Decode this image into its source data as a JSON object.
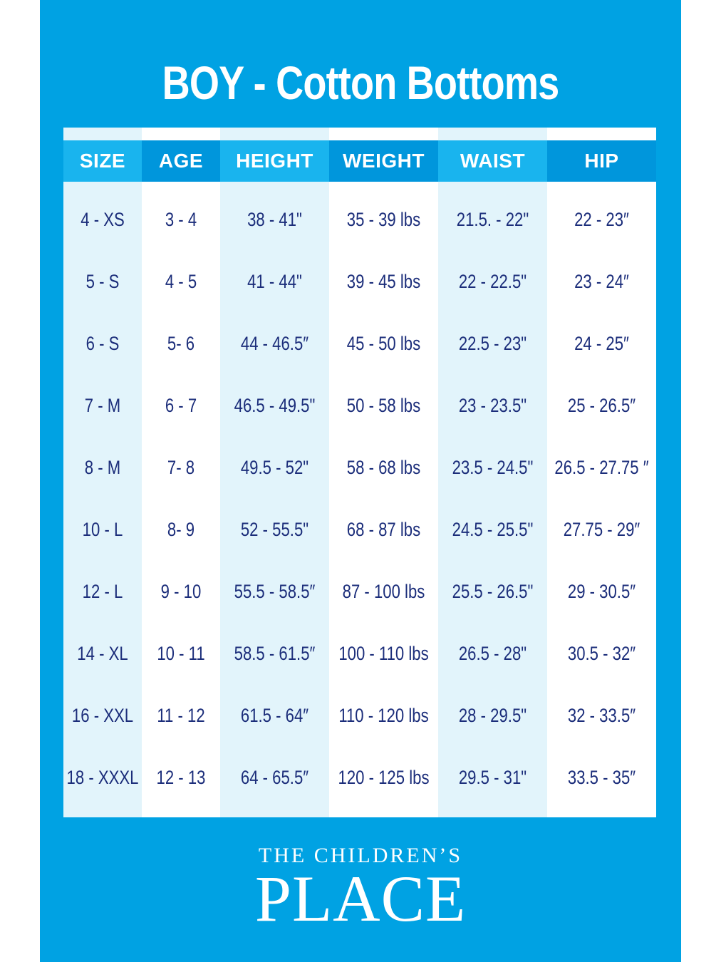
{
  "title": "BOY - Cotton Bottoms",
  "table": {
    "columns": [
      {
        "header": "SIZE",
        "values": [
          "4 - XS",
          "5 - S",
          "6 - S",
          "7 - M",
          "8 - M",
          "10 - L",
          "12 - L",
          "14 - XL",
          "16 - XXL",
          "18 - XXXL"
        ]
      },
      {
        "header": "AGE",
        "values": [
          "3 - 4",
          "4 - 5",
          "5- 6",
          "6 - 7",
          "7- 8",
          "8- 9",
          "9 - 10",
          "10 - 11",
          "11 - 12",
          "12 - 13"
        ]
      },
      {
        "header": "HEIGHT",
        "values": [
          "38 - 41\"",
          "41 - 44\"",
          "44 - 46.5″",
          "46.5 - 49.5\"",
          "49.5 - 52\"",
          "52 - 55.5\"",
          "55.5 - 58.5″",
          "58.5 - 61.5″",
          "61.5 - 64″",
          "64 - 65.5″"
        ]
      },
      {
        "header": "WEIGHT",
        "values": [
          "35 - 39 lbs",
          "39 - 45 lbs",
          "45 - 50 lbs",
          "50 - 58 lbs",
          "58 - 68 lbs",
          "68 - 87 lbs",
          "87 - 100 lbs",
          "100 - 110 lbs",
          "110 - 120 lbs",
          "120 - 125 lbs"
        ]
      },
      {
        "header": "WAIST",
        "values": [
          "21.5. - 22\"",
          "22 - 22.5\"",
          "22.5 - 23\"",
          "23 - 23.5\"",
          "23.5 - 24.5\"",
          "24.5 - 25.5\"",
          "25.5 - 26.5\"",
          "26.5 - 28\"",
          "28 - 29.5\"",
          "29.5 - 31\""
        ]
      },
      {
        "header": "HIP",
        "values": [
          "22 - 23″",
          "23 - 24″",
          "24 - 25″",
          "25 - 26.5″",
          "26.5 - 27.75 ″",
          "27.75 - 29″",
          "29 - 30.5″",
          "30.5 - 32″",
          "32 - 33.5″",
          "33.5 - 35″"
        ]
      }
    ]
  },
  "brand": {
    "line1": "THE CHILDREN’S",
    "line2": "PLACE"
  },
  "colors": {
    "background": "#00a2e3",
    "header_dark": "#0096dc",
    "header_light": "#19b4ee",
    "column_light": "#e2f4fb",
    "text": "#1b2d7a"
  }
}
